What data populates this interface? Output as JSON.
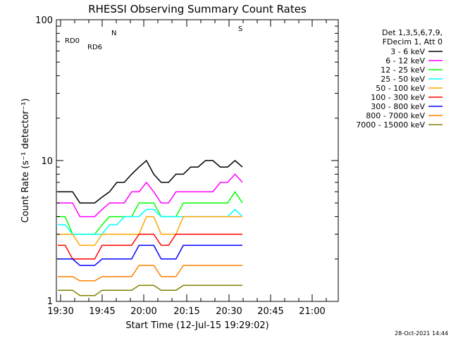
{
  "chart_data": {
    "type": "line",
    "title": "RHESSI Observing Summary Count Rates",
    "xlabel": "Start Time (12-Jul-15 19:29:02)",
    "ylabel": "Count Rate (s⁻¹ detector⁻¹)",
    "y_scale": "log",
    "ylim": [
      1,
      100
    ],
    "y_ticks": [
      1,
      10,
      100
    ],
    "y_tick_labels": [
      "1",
      "10",
      "100"
    ],
    "x_ticks": [
      "19:30",
      "19:45",
      "20:00",
      "20:15",
      "20:30",
      "20:45",
      "21:00"
    ],
    "timestamp": "28-Oct-2021 14:44",
    "legend_header": [
      "Det 1,3,5,6,7,9,",
      "FDecim 1, Att 0"
    ],
    "flag_labels": {
      "rd0": "RD0",
      "rd6": "RD6",
      "n": "N",
      "s": "S"
    },
    "series": [
      {
        "name": "3 - 6 keV",
        "color": "#000000",
        "values": [
          6,
          6,
          6,
          5,
          5,
          5,
          5.5,
          6,
          7,
          7,
          8,
          9,
          10,
          8,
          7,
          7,
          8,
          8,
          9,
          9,
          10,
          10,
          9,
          9,
          10,
          9
        ]
      },
      {
        "name": "6 - 12 keV",
        "color": "#ff00ff",
        "values": [
          5,
          5,
          5,
          4,
          4,
          4,
          4.5,
          5,
          5,
          5,
          6,
          6,
          7,
          6,
          5,
          5,
          6,
          6,
          6,
          6,
          6,
          6,
          7,
          7,
          8,
          7
        ]
      },
      {
        "name": "12 - 25 keV",
        "color": "#00ff00",
        "values": [
          4,
          4,
          3,
          3,
          3,
          3,
          3.5,
          4,
          4,
          4,
          4,
          5,
          5,
          5,
          4,
          4,
          4,
          5,
          5,
          5,
          5,
          5,
          5,
          5,
          6,
          5
        ]
      },
      {
        "name": "25 - 50 keV",
        "color": "#00ffff",
        "values": [
          3.5,
          3.5,
          3,
          3,
          3,
          3,
          3,
          3.5,
          3.5,
          4,
          4,
          4,
          4.5,
          4.5,
          4,
          4,
          4,
          4,
          4,
          4,
          4,
          4,
          4,
          4,
          4.5,
          4
        ]
      },
      {
        "name": "50 - 100 keV",
        "color": "#ffa500",
        "values": [
          3,
          3,
          3,
          2.5,
          2.5,
          2.5,
          3,
          3,
          3,
          3,
          3,
          3,
          4,
          4,
          3,
          3,
          3,
          4,
          4,
          4,
          4,
          4,
          4,
          4,
          4,
          4
        ]
      },
      {
        "name": "100 - 300 keV",
        "color": "#ff0000",
        "values": [
          2.5,
          2.5,
          2,
          2,
          2,
          2,
          2.5,
          2.5,
          2.5,
          2.5,
          2.5,
          3,
          3,
          3,
          2.5,
          2.5,
          3,
          3,
          3,
          3,
          3,
          3,
          3,
          3,
          3,
          3
        ]
      },
      {
        "name": "300 - 800 keV",
        "color": "#0000ff",
        "values": [
          2,
          2,
          2,
          1.8,
          1.8,
          1.8,
          2,
          2,
          2,
          2,
          2,
          2.5,
          2.5,
          2.5,
          2,
          2,
          2,
          2.5,
          2.5,
          2.5,
          2.5,
          2.5,
          2.5,
          2.5,
          2.5,
          2.5
        ]
      },
      {
        "name": "800 - 7000 keV",
        "color": "#ff8000",
        "values": [
          1.5,
          1.5,
          1.5,
          1.4,
          1.4,
          1.4,
          1.5,
          1.5,
          1.5,
          1.5,
          1.5,
          1.8,
          1.8,
          1.8,
          1.5,
          1.5,
          1.5,
          1.8,
          1.8,
          1.8,
          1.8,
          1.8,
          1.8,
          1.8,
          1.8,
          1.8
        ]
      },
      {
        "name": "7000 - 15000 keV",
        "color": "#808000",
        "values": [
          1.2,
          1.2,
          1.2,
          1.1,
          1.1,
          1.1,
          1.2,
          1.2,
          1.2,
          1.2,
          1.2,
          1.3,
          1.3,
          1.3,
          1.2,
          1.2,
          1.2,
          1.3,
          1.3,
          1.3,
          1.3,
          1.3,
          1.3,
          1.3,
          1.3,
          1.3
        ]
      }
    ]
  }
}
